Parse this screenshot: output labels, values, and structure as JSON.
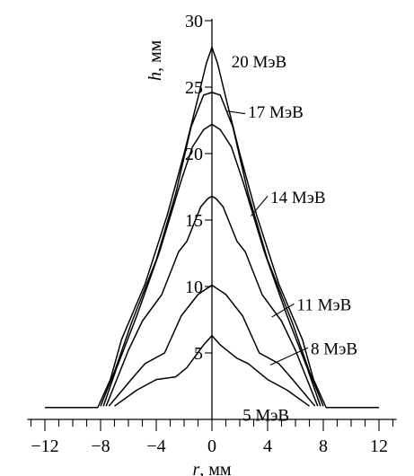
{
  "chart_data": {
    "type": "line",
    "title": "",
    "xlabel_var": "r",
    "xlabel_unit": ", мм",
    "ylabel_var": "h",
    "ylabel_unit": ", мм",
    "xlim": [
      -13,
      13
    ],
    "ylim": [
      0,
      30
    ],
    "x_ticks": [
      -12,
      -8,
      -4,
      0,
      4,
      8,
      12
    ],
    "x_tick_labels": [
      "−12",
      "−8",
      "−4",
      "0",
      "4",
      "8",
      "12"
    ],
    "x_minor_step": 1,
    "y_ticks": [
      5,
      10,
      15,
      20,
      25,
      30
    ],
    "y_tick_labels": [
      "5",
      "10",
      "15",
      "20",
      "25",
      "30"
    ],
    "grid": false,
    "series": [
      {
        "name": "20 МэВ",
        "x": [
          -12,
          -8.2,
          -7.3,
          -6.5,
          -4.8,
          -3.2,
          -2,
          -1,
          -0.4,
          0,
          0.4,
          1,
          2,
          3.2,
          4.8,
          6.5,
          7.3,
          8.2,
          12
        ],
        "y": [
          0.9,
          0.9,
          3.0,
          6.0,
          10.2,
          15.4,
          20.0,
          24.2,
          26.8,
          28.0,
          26.8,
          24.2,
          20.0,
          15.4,
          10.2,
          6.0,
          3.0,
          0.9,
          0.9
        ]
      },
      {
        "name": "17 МэВ",
        "x": [
          -8.0,
          -7.0,
          -5.8,
          -4.0,
          -2.6,
          -1.5,
          -0.6,
          0,
          0.6,
          1.5,
          2.6,
          4.0,
          5.8,
          7.0,
          8.0
        ],
        "y": [
          1.0,
          3.6,
          7.2,
          12.0,
          17.0,
          22.0,
          24.4,
          24.6,
          24.4,
          22.0,
          17.0,
          12.0,
          7.2,
          3.6,
          1.0
        ]
      },
      {
        "name": "14 МэВ",
        "x": [
          -7.8,
          -6.8,
          -5.4,
          -3.8,
          -2.2,
          -1.4,
          -0.6,
          0,
          0.6,
          1.4,
          2.2,
          3.8,
          5.4,
          6.8,
          7.8
        ],
        "y": [
          1.0,
          4.0,
          7.8,
          12.5,
          18.0,
          20.5,
          21.8,
          22.2,
          21.8,
          20.5,
          18.0,
          12.5,
          7.8,
          4.0,
          1.0
        ]
      },
      {
        "name": "11 МэВ",
        "x": [
          -7.6,
          -6.0,
          -5.0,
          -3.6,
          -2.4,
          -1.8,
          -0.8,
          -0.3,
          0,
          0.3,
          0.8,
          1.8,
          2.4,
          3.6,
          5.0,
          6.0,
          7.6
        ],
        "y": [
          1.0,
          5.2,
          7.4,
          9.4,
          12.6,
          13.4,
          16.0,
          16.6,
          16.8,
          16.6,
          16.0,
          13.4,
          12.6,
          9.4,
          7.4,
          5.2,
          1.0
        ]
      },
      {
        "name": "8 МэВ",
        "x": [
          -7.4,
          -5.8,
          -4.8,
          -3.4,
          -2.2,
          -1.0,
          0,
          1.0,
          2.2,
          3.4,
          4.8,
          5.8,
          7.4
        ],
        "y": [
          1.0,
          3.0,
          4.2,
          5.0,
          7.8,
          9.4,
          10.1,
          9.4,
          7.8,
          5.0,
          4.2,
          3.0,
          1.0
        ]
      },
      {
        "name": "5 МэВ",
        "x": [
          -7.0,
          -5.4,
          -4.0,
          -2.6,
          -1.8,
          -0.6,
          0,
          0.6,
          1.8,
          2.6,
          4.0,
          5.4,
          7.0
        ],
        "y": [
          1.0,
          2.2,
          3.0,
          3.2,
          3.9,
          5.6,
          6.3,
          5.6,
          4.6,
          4.2,
          3.0,
          2.2,
          1.0
        ]
      }
    ],
    "labels": [
      {
        "series": 0,
        "text": "20 МэВ",
        "text_x": 1.4,
        "text_y": 26.5,
        "leader": null
      },
      {
        "series": 1,
        "text": "17 МэВ",
        "text_x": 2.6,
        "text_y": 22.7,
        "leader": [
          1.0,
          23.2,
          2.4,
          23.0
        ]
      },
      {
        "series": 2,
        "text": "14 МэВ",
        "text_x": 4.2,
        "text_y": 16.3,
        "leader": [
          2.8,
          15.3,
          4.0,
          16.8
        ]
      },
      {
        "series": 3,
        "text": "11 МэВ",
        "text_x": 6.1,
        "text_y": 8.2,
        "leader": [
          4.3,
          7.7,
          5.9,
          8.7
        ]
      },
      {
        "series": 4,
        "text": "8 МэВ",
        "text_x": 7.1,
        "text_y": 4.9,
        "leader": [
          4.2,
          4.1,
          6.9,
          5.4
        ]
      },
      {
        "series": 5,
        "text": "5 МэВ",
        "text_x": 2.2,
        "text_y": -0.1,
        "leader": null
      }
    ]
  }
}
